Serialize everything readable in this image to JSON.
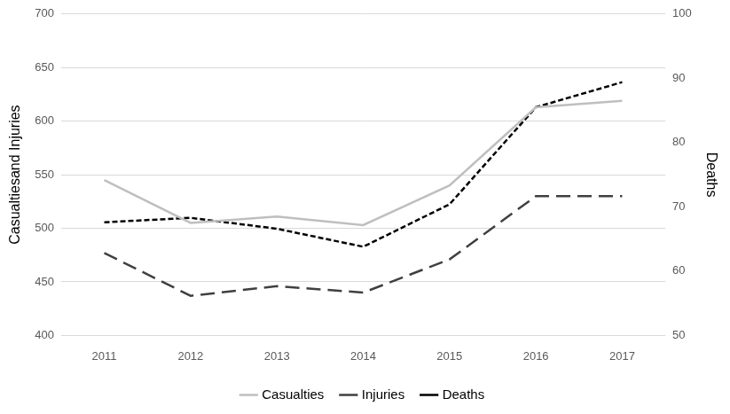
{
  "chart_data": {
    "type": "line",
    "categories": [
      "2011",
      "2012",
      "2013",
      "2014",
      "2015",
      "2016",
      "2017"
    ],
    "series": [
      {
        "name": "Casualties",
        "color": "#bfbfbf",
        "line_style": "solid",
        "values": [
          545,
          505,
          511,
          503,
          540,
          613,
          619
        ]
      },
      {
        "name": "Injuries",
        "color": "#404040",
        "line_style": "dashed",
        "values": [
          477,
          437,
          446,
          440,
          471,
          530,
          530
        ]
      },
      {
        "name": "Deaths",
        "color": "#000000",
        "line_style": "dotted",
        "axis": "y2",
        "values": [
          67.6,
          68.3,
          66.6,
          63.8,
          70.4,
          85.5,
          89.4
        ]
      }
    ],
    "y_label": "Casualtiesand Injuries",
    "y2_label": "Deaths",
    "ylim": [
      400,
      700
    ],
    "yticks": [
      400,
      450,
      500,
      550,
      600,
      650,
      700
    ],
    "y2lim": [
      50,
      100
    ],
    "y2ticks": [
      50,
      60,
      70,
      80,
      90,
      100
    ],
    "grid": true,
    "legend": "bottom"
  }
}
